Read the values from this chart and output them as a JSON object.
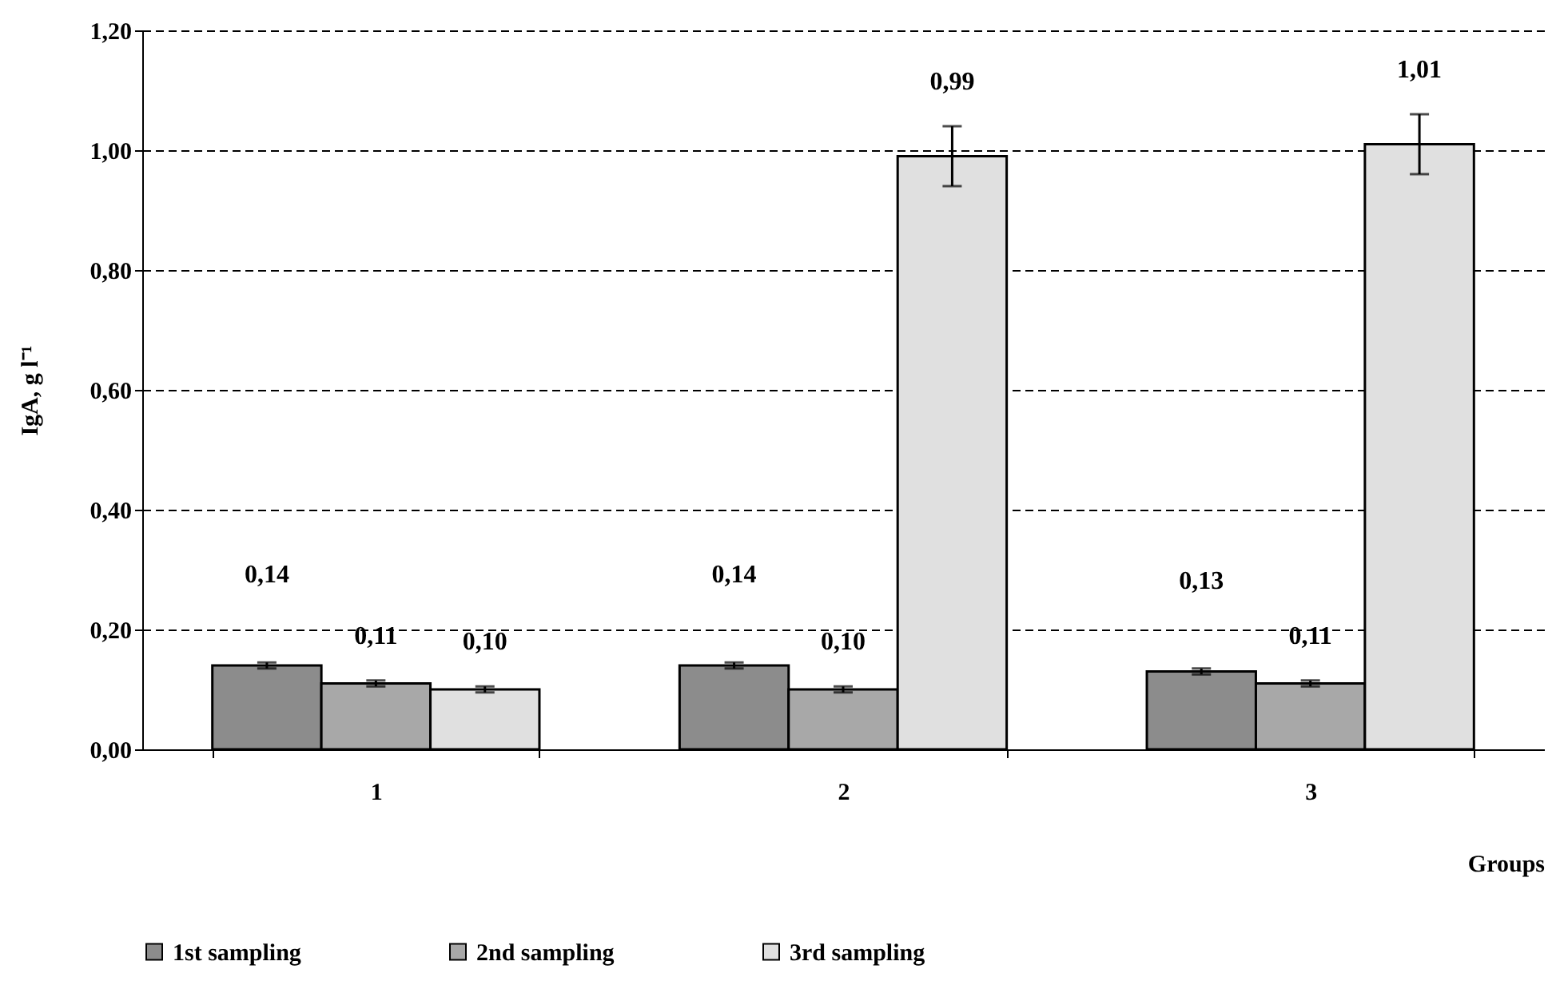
{
  "chart_data": {
    "type": "bar",
    "ylabel": "IgA, g l⁻¹",
    "xlabel": "Groups",
    "categories": [
      "1",
      "2",
      "3"
    ],
    "series": [
      {
        "name": "1st sampling",
        "color": "#8c8c8c",
        "values": [
          0.14,
          0.14,
          0.13
        ],
        "errors": [
          0.005,
          0.005,
          0.005
        ],
        "value_labels": [
          "0,14",
          "0,14",
          "0,13"
        ]
      },
      {
        "name": "2nd sampling",
        "color": "#a8a8a8",
        "values": [
          0.11,
          0.1,
          0.11
        ],
        "errors": [
          0.005,
          0.005,
          0.005
        ],
        "value_labels": [
          "0,11",
          "0,10",
          "0,11"
        ]
      },
      {
        "name": "3rd sampling",
        "color": "#e0e0e0",
        "values": [
          0.1,
          0.99,
          1.01
        ],
        "errors": [
          0.005,
          0.05,
          0.05
        ],
        "value_labels": [
          "0,10",
          "0,99",
          "1,01"
        ]
      }
    ],
    "ylim": [
      0,
      1.2
    ],
    "yticks": [
      {
        "value": 0,
        "label": "0,00"
      },
      {
        "value": 0.2,
        "label": "0,20"
      },
      {
        "value": 0.4,
        "label": "0,40"
      },
      {
        "value": 0.6,
        "label": "0,60"
      },
      {
        "value": 0.8,
        "label": "0,80"
      },
      {
        "value": 1.0,
        "label": "1,00"
      },
      {
        "value": 1.2,
        "label": "1,20"
      }
    ],
    "grid": "y",
    "legend": "bottom"
  }
}
